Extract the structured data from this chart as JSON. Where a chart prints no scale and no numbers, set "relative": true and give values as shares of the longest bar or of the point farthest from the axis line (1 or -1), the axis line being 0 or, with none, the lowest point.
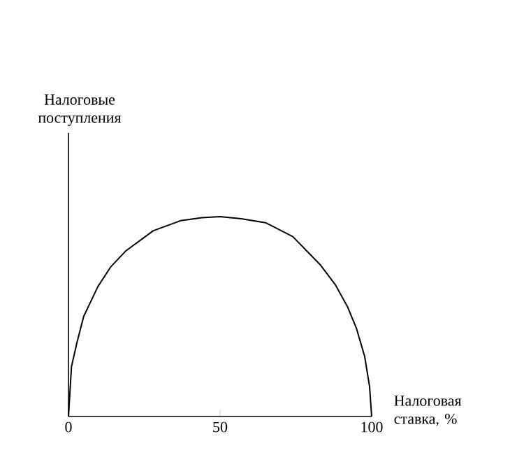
{
  "chart_data": {
    "type": "line",
    "xlabel": "Налоговая ставка, %",
    "annotations": [
      "Налоговые поступления"
    ],
    "relative": true,
    "x": [
      0,
      1,
      2.8,
      5,
      9.7,
      14,
      19,
      28,
      37,
      44,
      50,
      57,
      65,
      74,
      83,
      88,
      92,
      95,
      97.7,
      99.3,
      100
    ],
    "series": [
      {
        "color": "#000000",
        "values": [
          0,
          0.25,
          0.37,
          0.5,
          0.65,
          0.75,
          0.83,
          0.93,
          0.98,
          0.995,
          1,
          0.99,
          0.97,
          0.9,
          0.76,
          0.66,
          0.55,
          0.44,
          0.3,
          0.15,
          0
        ]
      }
    ],
    "xlim": [
      0,
      100
    ],
    "xticks": [
      0,
      50,
      100
    ],
    "grid": false,
    "marker": "none",
    "line_style": "solid"
  }
}
